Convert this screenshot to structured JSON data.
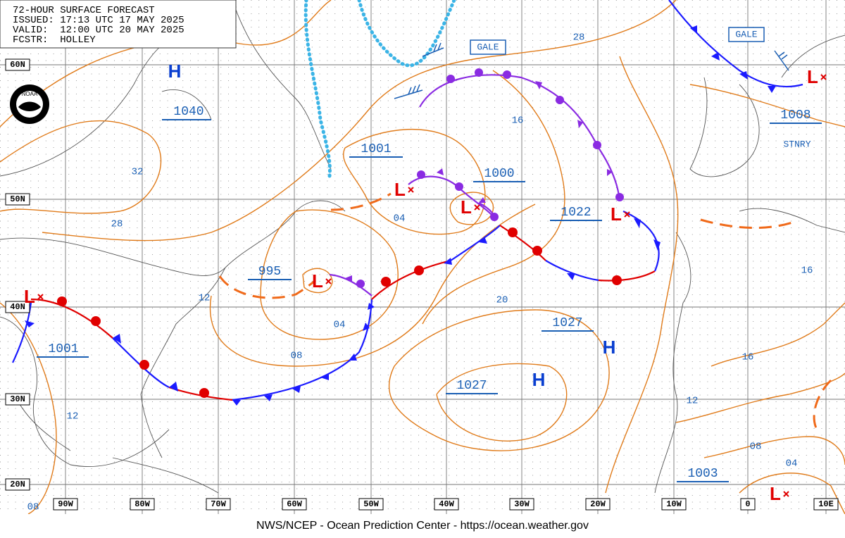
{
  "header": {
    "lines": [
      "72-HOUR SURFACE FORECAST",
      "ISSUED: 17:13 UTC 17 MAY 2025",
      "VALID:  12:00 UTC 20 MAY 2025",
      "FCSTR:  HOLLEY"
    ]
  },
  "logo": "NOAA",
  "latitude_labels": [
    "60N",
    "50N",
    "40N",
    "30N",
    "20N"
  ],
  "longitude_labels": [
    "90W",
    "80W",
    "70W",
    "60W",
    "50W",
    "40W",
    "30W",
    "20W",
    "10W",
    "0",
    "10E"
  ],
  "high_symbols": [
    "H",
    "H",
    "H"
  ],
  "low_symbols": [
    "L",
    "L",
    "L",
    "L",
    "L",
    "L",
    "L"
  ],
  "central_pressures": [
    "1040",
    "1001",
    "1000",
    "1022",
    "995",
    "1027",
    "1027",
    "1001",
    "1003",
    "1008"
  ],
  "isobar_labels": [
    "28",
    "16",
    "32",
    "28",
    "04",
    "12",
    "04",
    "20",
    "08",
    "12",
    "16",
    "16",
    "12",
    "08",
    "04",
    "08"
  ],
  "warnings": [
    "GALE",
    "GALE"
  ],
  "front_labels": [
    "STNRY"
  ],
  "footer": "NWS/NCEP - Ocean Prediction Center - https://ocean.weather.gov"
}
